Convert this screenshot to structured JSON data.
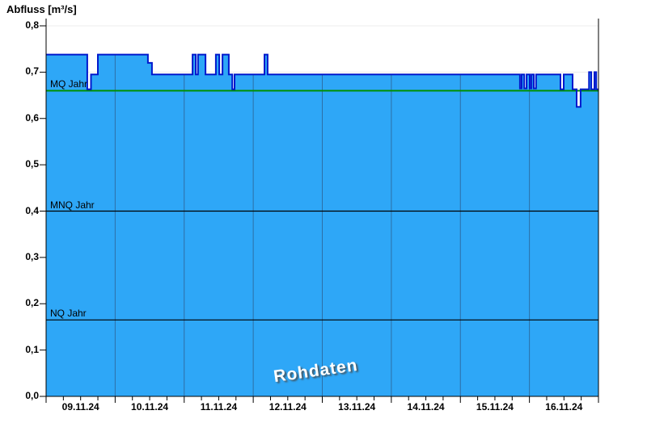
{
  "title": "Abfluss [m³/s]",
  "watermark": "Rohdaten",
  "colors": {
    "area_fill": "#2EA7F7",
    "area_border": "#0018CC",
    "grid_horizontal": "#ECECEC",
    "grid_vertical_in_area": "#2D6FA6",
    "mq_line_green": "#009000",
    "ref_line_dark": "#000000",
    "axis": "#000000"
  },
  "chart_data": {
    "type": "area",
    "title": "Abfluss [m³/s]",
    "ylabel": "Abfluss [m³/s]",
    "ylim": [
      0,
      0.8
    ],
    "y_tick_step": 0.1,
    "y_tick_labels": [
      "0,0",
      "0,1",
      "0,2",
      "0,3",
      "0,4",
      "0,5",
      "0,6",
      "0,7",
      "0,8"
    ],
    "x_days": [
      "09.11.24",
      "10.11.24",
      "11.11.24",
      "12.11.24",
      "13.11.24",
      "14.11.24",
      "15.11.24",
      "16.11.24"
    ],
    "x_total_hours": 192,
    "x_minor_tick_hours": 6,
    "grid": "horizontal light-gray lines every 0,1; vertical day gridlines visible only inside filled area",
    "legend_position": "none",
    "series": [
      {
        "name": "Abfluss Rohdaten",
        "unit": "m³/s",
        "steps_hour_value": [
          [
            0,
            0.738
          ],
          [
            14.3,
            0.663
          ],
          [
            15.6,
            0.695
          ],
          [
            18,
            0.738
          ],
          [
            35.4,
            0.72
          ],
          [
            36.8,
            0.695
          ],
          [
            50.9,
            0.738
          ],
          [
            52,
            0.695
          ],
          [
            52.8,
            0.738
          ],
          [
            55.4,
            0.695
          ],
          [
            59,
            0.738
          ],
          [
            60.2,
            0.695
          ],
          [
            61.3,
            0.738
          ],
          [
            63.5,
            0.695
          ],
          [
            64.7,
            0.663
          ],
          [
            65.5,
            0.695
          ],
          [
            75.9,
            0.738
          ],
          [
            77,
            0.695
          ],
          [
            164.7,
            0.665
          ],
          [
            165.3,
            0.695
          ],
          [
            166.2,
            0.665
          ],
          [
            167,
            0.695
          ],
          [
            168.1,
            0.665
          ],
          [
            168.7,
            0.695
          ],
          [
            169.5,
            0.665
          ],
          [
            170.3,
            0.695
          ],
          [
            178.8,
            0.663
          ],
          [
            179.9,
            0.695
          ],
          [
            183,
            0.663
          ],
          [
            184.4,
            0.625
          ],
          [
            185.8,
            0.663
          ],
          [
            188.7,
            0.7
          ],
          [
            189.5,
            0.663
          ],
          [
            190.6,
            0.7
          ],
          [
            191.2,
            0.663
          ]
        ]
      }
    ],
    "reference_lines": [
      {
        "label": "MQ Jahr",
        "value": 0.66,
        "color": "#009000"
      },
      {
        "label": "MNQ Jahr",
        "value": 0.4,
        "color": "#000000"
      },
      {
        "label": "NQ Jahr",
        "value": 0.165,
        "color": "#000000"
      }
    ]
  }
}
